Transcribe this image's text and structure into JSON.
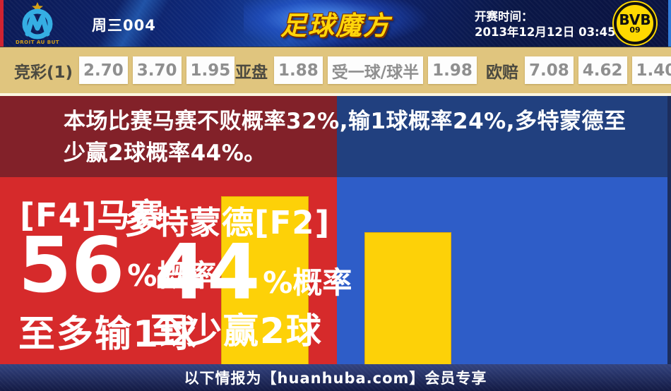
{
  "header": {
    "match_label": "周三004",
    "site_logo": "足球魔方",
    "kickoff_label": "开赛时间：",
    "kickoff_time": "2013年12月12日 03:45",
    "home_team": "马赛",
    "home_team_motto": "DROIT AU BUT",
    "away_team": "多特蒙德",
    "away_logo_text": "BVB",
    "away_logo_sub": "09"
  },
  "odds": {
    "jingcai": {
      "label": "竞彩(1)",
      "values": [
        "2.70",
        "3.70",
        "1.95"
      ]
    },
    "yapan": {
      "label": "亚盘",
      "values": [
        "1.88",
        "受一球/球半",
        "1.98"
      ]
    },
    "oupei": {
      "label": "欧赔",
      "values": [
        "7.08",
        "4.62",
        "1.40"
      ]
    }
  },
  "summary": {
    "line1": "本场比赛马赛不败概率32%,输1球概率24%,多特蒙德至",
    "line2": "少赢2球概率44%。"
  },
  "panels": {
    "home": {
      "title": "[F4]马赛",
      "percent": "56",
      "percent_suffix": "%概率",
      "subtitle": "至多输1球",
      "bar_percent": 56
    },
    "away": {
      "title": "多特蒙德[F2]",
      "percent": "44",
      "percent_suffix": "%概率",
      "subtitle": "至少赢2球",
      "bar_percent": 44
    }
  },
  "footer": {
    "text": "以下情报为【huanhuba.com】会员专享"
  },
  "colors": {
    "odds_bar_bg": "#e0c57e",
    "banner_red": "#822129",
    "banner_blue": "#21407f",
    "main_red": "#d62a2b",
    "main_blue": "#2e5dc8",
    "bar_yellow": "#fdd108",
    "header_navy": "#0d2270",
    "logo_gold": "#ffd60a"
  }
}
